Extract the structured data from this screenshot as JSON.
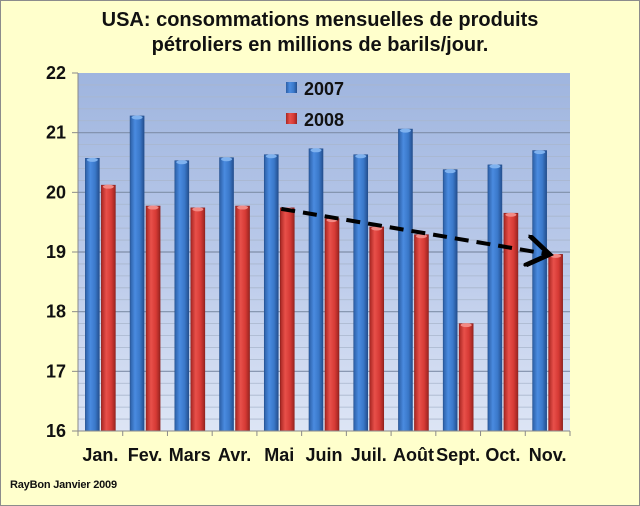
{
  "chart_data": {
    "type": "bar",
    "title_lines": [
      "USA: consommations mensuelles de produits",
      "pétroliers en millions de barils/jour."
    ],
    "xlabel": "",
    "ylabel": "",
    "categories": [
      "Jan.",
      "Fev.",
      "Mars",
      "Avr.",
      "Mai",
      "Juin",
      "Juil.",
      "Août",
      "Sept.",
      "Oct.",
      "Nov."
    ],
    "series": [
      {
        "name": "2007",
        "color": "#3a78c9",
        "values": [
          20.57,
          21.28,
          20.53,
          20.58,
          20.63,
          20.73,
          20.63,
          21.06,
          20.38,
          20.46,
          20.7
        ]
      },
      {
        "name": "2008",
        "color": "#d63a35",
        "values": [
          20.12,
          19.77,
          19.74,
          19.77,
          19.74,
          19.56,
          19.42,
          19.29,
          17.8,
          19.65,
          18.96
        ]
      }
    ],
    "ylim": [
      16,
      22
    ],
    "yticks": [
      16,
      17,
      18,
      19,
      20,
      21,
      22
    ],
    "minor_grid_step": 0.2,
    "grid": true,
    "legend": {
      "placement": "top-center",
      "entries": [
        "2007",
        "2008"
      ]
    },
    "annotation": {
      "type": "dashed-arrow",
      "description": "downward trend of 2008 consumption",
      "from": {
        "category": "Mai",
        "value": 19.74
      },
      "to": {
        "category": "Nov.",
        "value": 18.96
      }
    }
  },
  "credit": "RayBon Janvier 2009"
}
